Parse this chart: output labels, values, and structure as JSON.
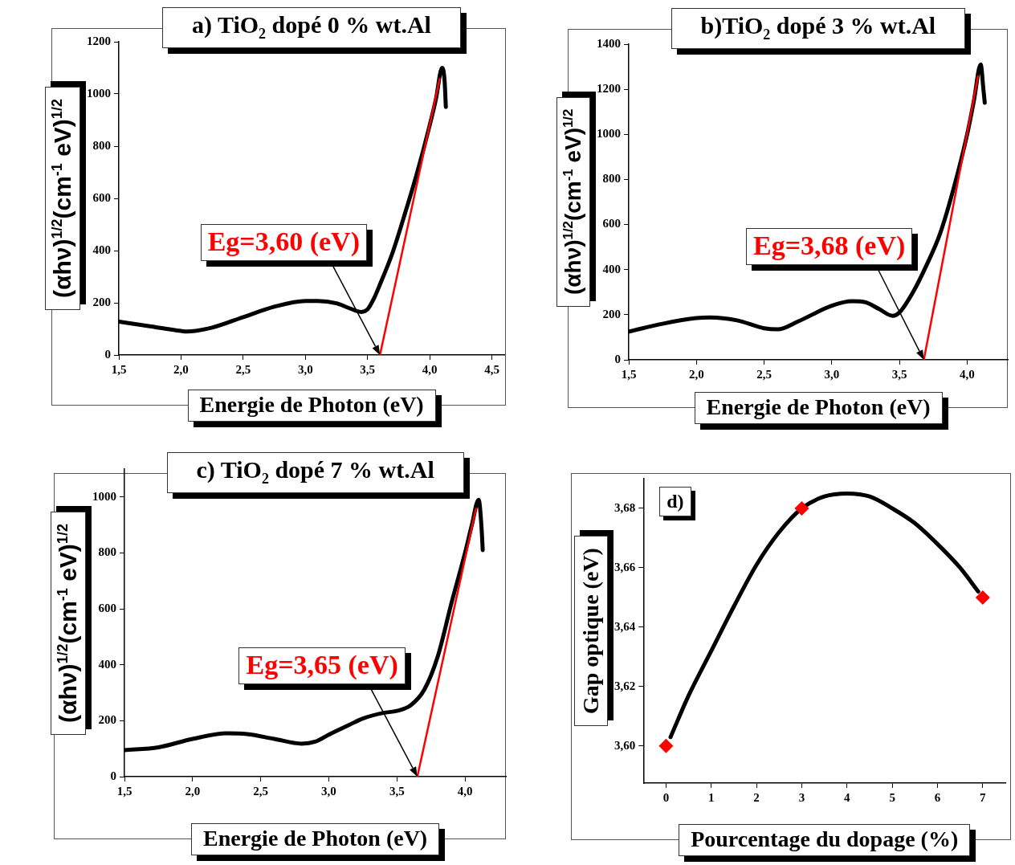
{
  "chart_data": [
    {
      "type": "line",
      "title": "a) TiO$_{2}$ dopé 0 % wt.Al",
      "xlabel": "Energie de Photon (eV)",
      "ylabel": "(αhν)$^{1/2}$(cm$^{-1}$ eV)$^{1/2}$",
      "xlim": [
        1.5,
        4.6
      ],
      "xticks": [
        {
          "value": 1.5,
          "label": "1,5"
        },
        {
          "value": 2,
          "label": "2,0"
        },
        {
          "value": 2.5,
          "label": "2,5"
        },
        {
          "value": 3,
          "label": "3,0"
        },
        {
          "value": 3.5,
          "label": "3,5"
        },
        {
          "value": 4,
          "label": "4,0"
        },
        {
          "value": 4.5,
          "label": "4,5"
        }
      ],
      "ylim": [
        0,
        1200
      ],
      "yticks": [
        0,
        200,
        400,
        600,
        800,
        1000,
        1200
      ],
      "grid": false,
      "legend": false,
      "marker": "none",
      "series": [
        {
          "color": "#000000",
          "x": [
            1.5,
            1.75,
            2.0,
            2.05,
            2.25,
            2.5,
            2.75,
            3.0,
            3.1,
            3.25,
            3.35,
            3.45,
            3.5,
            3.55,
            3.6,
            3.7,
            3.8,
            3.9,
            4.0,
            4.05,
            4.1,
            4.12,
            4.13
          ],
          "values": [
            128,
            110,
            92,
            90,
            105,
            145,
            185,
            207,
            207,
            198,
            180,
            165,
            175,
            215,
            270,
            390,
            540,
            700,
            880,
            980,
            1100,
            1050,
            950
          ]
        },
        {
          "type": "line",
          "color": "#ff0000",
          "x": [
            3.6,
            4.08
          ],
          "values": [
            0,
            1058
          ]
        }
      ],
      "annotations": [
        "Eg=3,60 (eV)"
      ]
    },
    {
      "type": "line",
      "title": "b)TiO$_{2}$ dopé 3 % wt.Al",
      "xlabel": "Energie de Photon (eV)",
      "ylabel": "(αhν)$^{1/2}$(cm$^{-1}$ eV)$^{1/2}$",
      "xlim": [
        1.5,
        4.3
      ],
      "xticks": [
        {
          "value": 1.5,
          "label": "1,5"
        },
        {
          "value": 2,
          "label": "2,0"
        },
        {
          "value": 2.5,
          "label": "2,5"
        },
        {
          "value": 3,
          "label": "3,0"
        },
        {
          "value": 3.5,
          "label": "3,5"
        },
        {
          "value": 4,
          "label": "4,0"
        }
      ],
      "ylim": [
        0,
        1400
      ],
      "yticks": [
        0,
        200,
        400,
        600,
        800,
        1000,
        1200,
        1400
      ],
      "grid": false,
      "legend": false,
      "marker": "none",
      "series": [
        {
          "color": "#000000",
          "x": [
            1.5,
            1.75,
            2.0,
            2.1,
            2.3,
            2.5,
            2.6,
            2.75,
            3.0,
            3.15,
            3.25,
            3.35,
            3.45,
            3.5,
            3.6,
            3.7,
            3.8,
            3.9,
            4.0,
            4.05,
            4.1,
            4.12,
            4.13
          ],
          "values": [
            125,
            160,
            185,
            188,
            175,
            140,
            135,
            170,
            240,
            260,
            255,
            225,
            195,
            210,
            300,
            420,
            560,
            760,
            1000,
            1150,
            1310,
            1200,
            1140
          ]
        },
        {
          "type": "line",
          "color": "#ff0000",
          "x": [
            3.68,
            4.08
          ],
          "values": [
            0,
            1258
          ]
        }
      ],
      "annotations": [
        "Eg=3,68 (eV)"
      ]
    },
    {
      "type": "line",
      "title": "c) TiO$_{2}$ dopé 7 % wt.Al",
      "xlabel": "Energie de Photon (eV)",
      "ylabel": "(αhν)$^{1/2}$(cm$^{-1}$ eV)$^{1/2}$",
      "xlim": [
        1.5,
        4.3
      ],
      "xticks": [
        {
          "value": 1.5,
          "label": "1,5"
        },
        {
          "value": 2,
          "label": "2,0"
        },
        {
          "value": 2.5,
          "label": "2,5"
        },
        {
          "value": 3,
          "label": "3,0"
        },
        {
          "value": 3.5,
          "label": "3,5"
        },
        {
          "value": 4,
          "label": "4,0"
        }
      ],
      "ylim": [
        0,
        1100
      ],
      "yticks": [
        0,
        200,
        400,
        600,
        800,
        1000
      ],
      "grid": false,
      "legend": false,
      "marker": "none",
      "series": [
        {
          "color": "#000000",
          "x": [
            1.5,
            1.75,
            2.0,
            2.25,
            2.4,
            2.6,
            2.8,
            2.9,
            3.0,
            3.15,
            3.25,
            3.4,
            3.5,
            3.6,
            3.7,
            3.8,
            3.9,
            4.0,
            4.05,
            4.1,
            4.12,
            4.13
          ],
          "values": [
            95,
            105,
            135,
            155,
            152,
            135,
            118,
            125,
            150,
            185,
            208,
            228,
            235,
            255,
            310,
            430,
            620,
            800,
            900,
            990,
            900,
            810
          ]
        },
        {
          "type": "line",
          "color": "#ff0000",
          "x": [
            3.65,
            4.08
          ],
          "values": [
            0,
            958
          ]
        }
      ],
      "annotations": [
        "Eg=3,65 (eV)"
      ]
    },
    {
      "type": "line",
      "title": "d)",
      "xlabel": "Pourcentage du dopage (%)",
      "ylabel": "Gap optique (eV)",
      "xlim": [
        -0.5,
        7.5
      ],
      "xticks": [
        0,
        1,
        2,
        3,
        4,
        5,
        6,
        7
      ],
      "ylim": [
        3.5875,
        3.69
      ],
      "yticks": [
        {
          "value": 3.6,
          "label": "3,60"
        },
        {
          "value": 3.62,
          "label": "3,62"
        },
        {
          "value": 3.64,
          "label": "3,64"
        },
        {
          "value": 3.66,
          "label": "3,66"
        },
        {
          "value": 3.68,
          "label": "3,68"
        }
      ],
      "grid": false,
      "legend": false,
      "series": [
        {
          "color": "#000000",
          "marker": "none",
          "x": [
            0.1,
            0.5,
            1,
            1.5,
            2,
            2.5,
            3,
            3.5,
            4,
            4.5,
            5,
            5.5,
            6,
            6.5,
            6.9
          ],
          "values": [
            3.603,
            3.617,
            3.632,
            3.647,
            3.661,
            3.672,
            3.68,
            3.684,
            3.685,
            3.684,
            3.68,
            3.675,
            3.668,
            3.66,
            3.652
          ]
        },
        {
          "type": "scatter",
          "color": "#ff0000",
          "marker": "diamond",
          "x": [
            0,
            3,
            7
          ],
          "values": [
            3.6,
            3.68,
            3.65
          ]
        }
      ]
    }
  ]
}
